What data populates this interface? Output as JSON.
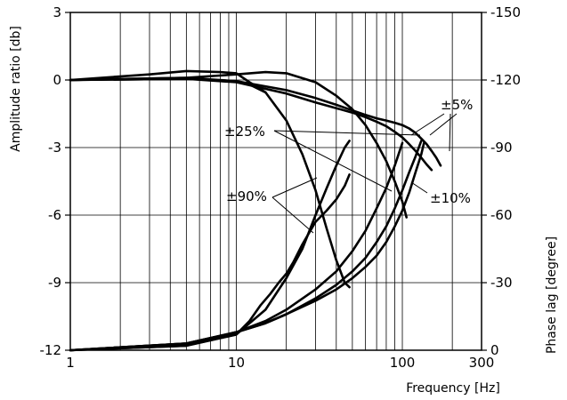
{
  "chart_data": {
    "type": "line",
    "xlabel": "Frequency [Hz]",
    "ylabel": "Amplitude ratio [db]",
    "ylabel_right": "Phase lag [degree]",
    "x_scale": "log",
    "xlim": [
      1,
      300
    ],
    "ylim": [
      -12,
      3
    ],
    "ylim_right": [
      0,
      -150
    ],
    "grid": true,
    "x_ticks": [
      {
        "value": 1,
        "label": "1"
      },
      {
        "value": 10,
        "label": "10"
      },
      {
        "value": 100,
        "label": "100"
      },
      {
        "value": 300,
        "label": "300"
      }
    ],
    "y_ticks": [
      {
        "value": 3,
        "label": "3"
      },
      {
        "value": 0,
        "label": "0"
      },
      {
        "value": -3,
        "label": "-3"
      },
      {
        "value": -6,
        "label": "-6"
      },
      {
        "value": -9,
        "label": "-9"
      },
      {
        "value": -12,
        "label": "-12"
      }
    ],
    "y_ticks_right": [
      {
        "value": -150,
        "label": "-150"
      },
      {
        "value": -120,
        "label": "-120"
      },
      {
        "value": -90,
        "label": "-90"
      },
      {
        "value": -60,
        "label": "-60"
      },
      {
        "value": -30,
        "label": "-30"
      },
      {
        "value": 0,
        "label": "0"
      }
    ],
    "annotations": [
      "±25%",
      "±90%",
      "±5%",
      "±10%"
    ],
    "series": [
      {
        "axis": "left",
        "x": [
          1,
          3,
          5,
          8,
          10,
          12,
          15
        ],
        "y": [
          0,
          0.25,
          0.4,
          0.35,
          0.3,
          -0.1,
          -0.55
        ]
      },
      {
        "axis": "left",
        "x": [
          1,
          5,
          10,
          12,
          15,
          20,
          25,
          30,
          35,
          40,
          45,
          48
        ],
        "y": [
          0,
          0.1,
          -0.05,
          -0.2,
          -0.55,
          -1.8,
          -3.3,
          -4.9,
          -6.6,
          -8.0,
          -9.0,
          -9.2
        ]
      },
      {
        "axis": "left",
        "x": [
          1,
          5,
          10,
          15,
          20,
          30,
          40,
          50,
          60,
          70,
          80,
          90,
          100,
          106
        ],
        "y": [
          0,
          0.1,
          0.25,
          0.35,
          0.3,
          -0.1,
          -0.7,
          -1.3,
          -2.0,
          -2.8,
          -3.6,
          -4.5,
          -5.4,
          -6.1
        ]
      },
      {
        "axis": "left",
        "x": [
          1,
          5,
          10,
          20,
          30,
          40,
          50,
          60,
          70,
          80,
          90,
          100,
          110,
          120,
          130,
          140,
          150,
          160,
          170
        ],
        "y": [
          0,
          0.05,
          -0.05,
          -0.45,
          -0.8,
          -1.1,
          -1.35,
          -1.55,
          -1.7,
          -1.8,
          -1.9,
          -2.0,
          -2.15,
          -2.35,
          -2.6,
          -2.85,
          -3.15,
          -3.45,
          -3.8
        ]
      },
      {
        "axis": "left",
        "x": [
          1,
          5,
          10,
          20,
          30,
          40,
          50,
          60,
          70,
          80,
          90,
          100,
          110,
          120,
          130,
          140,
          150
        ],
        "y": [
          0,
          0.05,
          -0.1,
          -0.6,
          -1.0,
          -1.25,
          -1.45,
          -1.65,
          -1.85,
          -2.05,
          -2.3,
          -2.55,
          -2.85,
          -3.15,
          -3.45,
          -3.75,
          -4.0
        ]
      },
      {
        "axis": "right",
        "x": [
          1,
          5,
          10,
          15,
          20,
          25,
          30,
          35,
          40,
          45,
          48
        ],
        "y": [
          0,
          -2,
          -7,
          -18,
          -32,
          -45,
          -60,
          -72,
          -82,
          -90,
          -93
        ]
      },
      {
        "axis": "right",
        "x": [
          1,
          5,
          10,
          12,
          14,
          16,
          18,
          20,
          22,
          25,
          30,
          35,
          40,
          45,
          48
        ],
        "y": [
          0,
          -2,
          -7,
          -13,
          -20,
          -25,
          -30,
          -34,
          -39,
          -47,
          -57,
          -62,
          -67,
          -73,
          -78
        ]
      },
      {
        "axis": "right",
        "x": [
          1,
          5,
          10,
          15,
          20,
          30,
          40,
          50,
          60,
          70,
          80,
          90,
          100
        ],
        "y": [
          0,
          -3,
          -8,
          -13,
          -18,
          -27,
          -35,
          -44,
          -53,
          -63,
          -72,
          -82,
          -92
        ]
      },
      {
        "axis": "right",
        "x": [
          1,
          5,
          10,
          15,
          20,
          30,
          40,
          50,
          60,
          70,
          80,
          90,
          100,
          110,
          120,
          130
        ],
        "y": [
          0,
          -3,
          -8,
          -12,
          -16,
          -23,
          -29,
          -35,
          -41,
          -48,
          -55,
          -63,
          -71,
          -79,
          -86,
          -93
        ]
      },
      {
        "axis": "right",
        "x": [
          1,
          5,
          10,
          15,
          20,
          30,
          40,
          50,
          60,
          70,
          80,
          90,
          100,
          110,
          120,
          130,
          135
        ],
        "y": [
          0,
          -3,
          -8,
          -12,
          -16,
          -22,
          -27,
          -32,
          -37,
          -42,
          -48,
          -55,
          -62,
          -70,
          -79,
          -87,
          -92
        ]
      }
    ]
  }
}
